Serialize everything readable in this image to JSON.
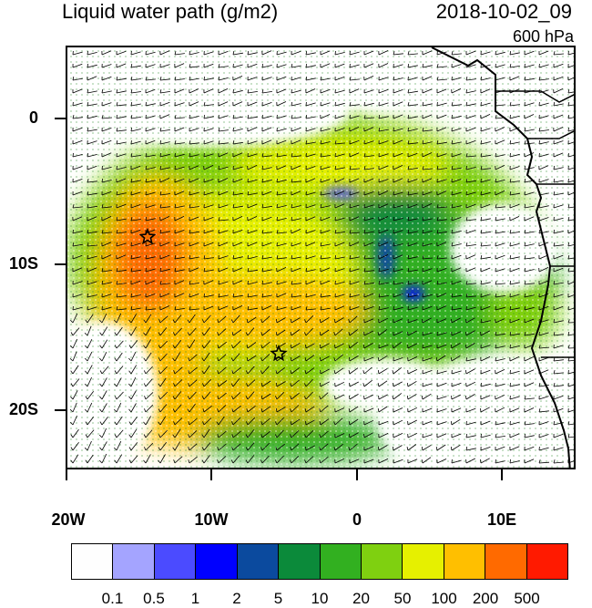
{
  "title": "Liquid water path (g/m2)",
  "datetime": "2018-10-02_09",
  "level": "600 hPa",
  "axes": {
    "lat_ticks": [
      "0",
      "10S",
      "20S"
    ],
    "lon_ticks": [
      "20W",
      "10W",
      "0",
      "10E"
    ]
  },
  "colorbar": {
    "colors": [
      "#fefefe",
      "#a4a4ff",
      "#4b4bff",
      "#0000ff",
      "#0b4a9e",
      "#0b8a3a",
      "#32b020",
      "#7fd010",
      "#e6f000",
      "#ffbf00",
      "#ff6a00",
      "#ff1a00"
    ],
    "labels": [
      "0.1",
      "0.5",
      "1",
      "2",
      "5",
      "10",
      "20",
      "50",
      "100",
      "200",
      "500"
    ]
  },
  "markers": [
    {
      "name": "star-1",
      "lon": -14.5,
      "lat": -8
    },
    {
      "name": "star-2",
      "lon": -5.5,
      "lat": -16
    }
  ]
}
